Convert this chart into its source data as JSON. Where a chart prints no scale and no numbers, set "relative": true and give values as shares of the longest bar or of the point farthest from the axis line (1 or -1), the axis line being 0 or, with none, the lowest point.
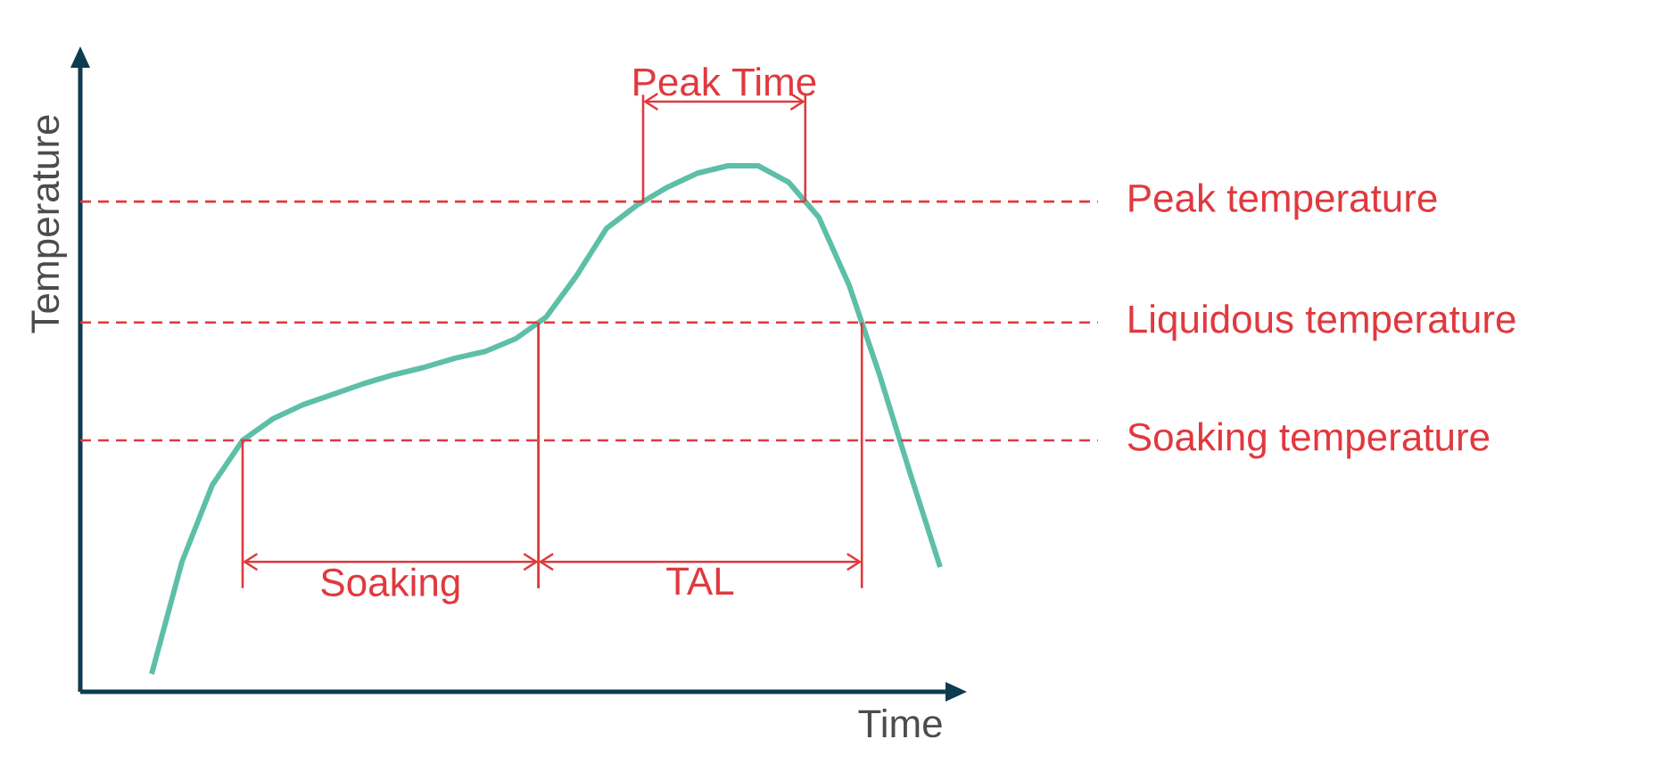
{
  "chart_data": {
    "type": "line",
    "relative": true,
    "xlabel": "Time",
    "ylabel": "Temperature",
    "categories": [
      null,
      null,
      null,
      null,
      null,
      null,
      null,
      null,
      null,
      null,
      null,
      null,
      null,
      null,
      null,
      null,
      null,
      null,
      null,
      null,
      null,
      null,
      null,
      null,
      null,
      null,
      null
    ],
    "series": [
      {
        "color": "#5dbfa8",
        "values": [
          0.034,
          0.247,
          0.393,
          0.478,
          0.519,
          0.546,
          0.566,
          0.586,
          0.603,
          0.617,
          0.634,
          0.647,
          0.671,
          0.712,
          0.79,
          0.881,
          0.925,
          0.959,
          0.986,
          1,
          1,
          0.969,
          0.902,
          0.773,
          0.603,
          0.417,
          0.237
        ]
      }
    ],
    "ref_lines": [
      {
        "axis": "y",
        "value": 0.932,
        "label": "Peak temperature",
        "color": "#e0393e",
        "line_style": "dashed"
      },
      {
        "axis": "y",
        "value": 0.702,
        "label": "Liquidous temperature",
        "color": "#e0393e",
        "line_style": "dashed"
      },
      {
        "axis": "y",
        "value": 0.478,
        "label": "Soaking temperature",
        "color": "#e0393e",
        "line_style": "dashed"
      }
    ],
    "annotations": [
      "Peak Time",
      "Soaking",
      "TAL"
    ],
    "marker": "none",
    "line_style": "solid"
  }
}
